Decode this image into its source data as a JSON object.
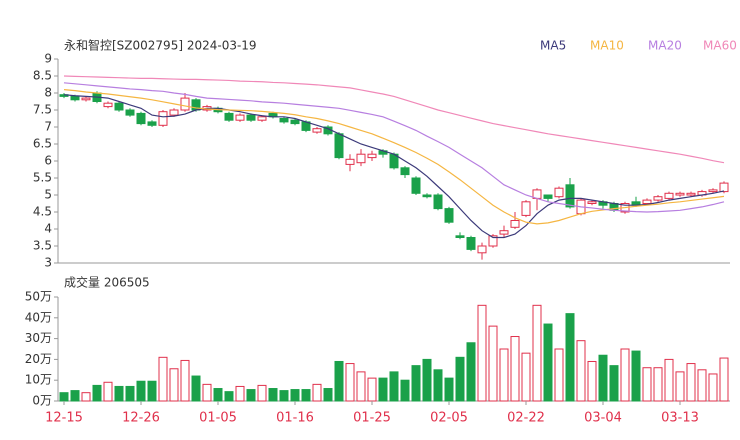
{
  "chart_data": [
    {
      "type": "candlestick",
      "title": "永和智控[SZ002795] 2024-03-19",
      "up_color": "#e0304b",
      "down_color": "#1aa14a",
      "legend": "top-right",
      "open": [
        7.95,
        7.9,
        7.8,
        8.0,
        7.6,
        7.7,
        7.5,
        7.4,
        7.15,
        7.05,
        7.35,
        7.5,
        7.8,
        7.5,
        7.55,
        7.4,
        7.2,
        7.35,
        7.2,
        7.4,
        7.25,
        7.2,
        7.15,
        6.85,
        7.0,
        6.8,
        5.9,
        5.95,
        6.1,
        6.3,
        6.2,
        5.8,
        5.5,
        5.0,
        5.0,
        4.6,
        3.8,
        3.75,
        3.3,
        3.5,
        3.85,
        4.05,
        4.4,
        4.9,
        5.0,
        4.95,
        5.3,
        4.45,
        4.75,
        4.8,
        4.75,
        4.5,
        4.8,
        4.75,
        4.85,
        4.9,
        5.0,
        5.0,
        5.0,
        5.1,
        5.1
      ],
      "close": [
        7.9,
        7.8,
        7.85,
        7.75,
        7.7,
        7.5,
        7.35,
        7.1,
        7.05,
        7.45,
        7.5,
        7.85,
        7.5,
        7.6,
        7.45,
        7.2,
        7.35,
        7.2,
        7.3,
        7.3,
        7.15,
        7.1,
        6.9,
        6.95,
        6.8,
        6.1,
        6.05,
        6.2,
        6.2,
        6.2,
        5.8,
        5.6,
        5.05,
        4.95,
        4.6,
        4.2,
        3.75,
        3.4,
        3.5,
        3.8,
        3.95,
        4.25,
        4.8,
        5.15,
        4.9,
        5.2,
        4.65,
        4.85,
        4.8,
        4.7,
        4.55,
        4.75,
        4.7,
        4.85,
        4.95,
        5.05,
        5.05,
        5.05,
        5.1,
        5.15,
        5.35
      ],
      "high": [
        8.0,
        7.95,
        7.9,
        8.05,
        7.75,
        7.75,
        7.55,
        7.45,
        7.2,
        7.5,
        7.55,
        8.0,
        7.85,
        7.65,
        7.6,
        7.45,
        7.4,
        7.4,
        7.35,
        7.45,
        7.3,
        7.25,
        7.2,
        7.0,
        7.05,
        6.85,
        6.2,
        6.35,
        6.3,
        6.35,
        6.25,
        5.85,
        5.55,
        5.05,
        5.05,
        4.65,
        3.9,
        3.8,
        3.6,
        3.85,
        4.1,
        4.5,
        4.85,
        5.2,
        5.0,
        5.25,
        5.5,
        4.9,
        4.85,
        4.85,
        4.8,
        4.8,
        4.95,
        4.9,
        5.0,
        5.1,
        5.1,
        5.1,
        5.15,
        5.2,
        5.4
      ],
      "low": [
        7.85,
        7.75,
        7.75,
        7.7,
        7.55,
        7.45,
        7.3,
        7.05,
        7.0,
        7.0,
        7.3,
        7.45,
        7.45,
        7.45,
        7.4,
        7.15,
        7.15,
        7.15,
        7.15,
        7.25,
        7.1,
        7.05,
        6.85,
        6.8,
        6.75,
        6.05,
        5.7,
        5.85,
        6.0,
        6.1,
        5.75,
        5.5,
        5.0,
        4.9,
        4.55,
        4.15,
        3.7,
        3.35,
        3.1,
        3.45,
        3.75,
        4.0,
        4.35,
        4.55,
        4.8,
        4.9,
        4.6,
        4.4,
        4.7,
        4.6,
        4.5,
        4.45,
        4.65,
        4.7,
        4.8,
        4.85,
        4.95,
        4.95,
        4.95,
        5.05,
        5.05
      ],
      "ylim": [
        3,
        9
      ],
      "yticks": [
        3,
        3.5,
        4,
        4.5,
        5,
        5.5,
        6,
        6.5,
        7,
        7.5,
        8,
        8.5,
        9
      ],
      "series": [
        {
          "name": "MA5",
          "color": "#3c3a7a",
          "values": [
            7.95,
            7.92,
            7.9,
            7.88,
            7.85,
            7.75,
            7.65,
            7.55,
            7.35,
            7.3,
            7.32,
            7.38,
            7.5,
            7.55,
            7.55,
            7.5,
            7.45,
            7.38,
            7.33,
            7.3,
            7.3,
            7.25,
            7.15,
            7.05,
            6.95,
            6.8,
            6.65,
            6.5,
            6.4,
            6.3,
            6.2,
            6.0,
            5.8,
            5.55,
            5.25,
            4.95,
            4.6,
            4.25,
            3.95,
            3.75,
            3.75,
            3.85,
            4.1,
            4.45,
            4.7,
            4.85,
            4.9,
            4.9,
            4.85,
            4.8,
            4.75,
            4.7,
            4.7,
            4.72,
            4.78,
            4.85,
            4.9,
            4.95,
            5.0,
            5.05,
            5.12
          ]
        },
        {
          "name": "MA10",
          "color": "#f5b642",
          "values": [
            8.1,
            8.07,
            8.03,
            8.0,
            7.97,
            7.93,
            7.89,
            7.85,
            7.8,
            7.74,
            7.68,
            7.62,
            7.56,
            7.53,
            7.51,
            7.5,
            7.49,
            7.48,
            7.46,
            7.43,
            7.4,
            7.36,
            7.3,
            7.25,
            7.18,
            7.1,
            7.0,
            6.9,
            6.8,
            6.67,
            6.54,
            6.4,
            6.25,
            6.08,
            5.9,
            5.68,
            5.45,
            5.2,
            4.95,
            4.7,
            4.5,
            4.33,
            4.2,
            4.15,
            4.18,
            4.25,
            4.35,
            4.45,
            4.52,
            4.56,
            4.6,
            4.63,
            4.67,
            4.7,
            4.73,
            4.77,
            4.8,
            4.84,
            4.88,
            4.92,
            4.96
          ]
        },
        {
          "name": "MA20",
          "color": "#b77fe0",
          "values": [
            8.3,
            8.27,
            8.24,
            8.21,
            8.18,
            8.15,
            8.12,
            8.1,
            8.07,
            8.05,
            8.0,
            7.96,
            7.9,
            7.85,
            7.83,
            7.81,
            7.79,
            7.77,
            7.74,
            7.72,
            7.7,
            7.67,
            7.64,
            7.61,
            7.58,
            7.55,
            7.49,
            7.43,
            7.37,
            7.3,
            7.17,
            7.04,
            6.9,
            6.73,
            6.57,
            6.4,
            6.2,
            6.0,
            5.8,
            5.55,
            5.3,
            5.15,
            5.0,
            4.9,
            4.8,
            4.75,
            4.7,
            4.65,
            4.62,
            4.58,
            4.55,
            4.53,
            4.51,
            4.5,
            4.51,
            4.53,
            4.55,
            4.6,
            4.65,
            4.72,
            4.8
          ]
        },
        {
          "name": "MA60",
          "color": "#f088b8",
          "values": [
            8.5,
            8.49,
            8.48,
            8.47,
            8.46,
            8.45,
            8.44,
            8.43,
            8.43,
            8.42,
            8.41,
            8.4,
            8.4,
            8.39,
            8.38,
            8.37,
            8.35,
            8.34,
            8.33,
            8.31,
            8.3,
            8.28,
            8.26,
            8.24,
            8.21,
            8.18,
            8.15,
            8.09,
            8.03,
            7.97,
            7.9,
            7.8,
            7.7,
            7.6,
            7.5,
            7.42,
            7.34,
            7.26,
            7.18,
            7.1,
            7.04,
            6.98,
            6.92,
            6.86,
            6.8,
            6.75,
            6.7,
            6.65,
            6.6,
            6.55,
            6.5,
            6.45,
            6.4,
            6.35,
            6.3,
            6.25,
            6.2,
            6.14,
            6.08,
            6.01,
            5.95
          ]
        }
      ]
    },
    {
      "type": "bar",
      "title": "成交量 206505",
      "categories": [
        "12-15",
        null,
        null,
        null,
        null,
        null,
        null,
        "12-26",
        null,
        null,
        null,
        null,
        null,
        null,
        "01-05",
        null,
        null,
        null,
        null,
        null,
        null,
        "01-16",
        null,
        null,
        null,
        null,
        null,
        null,
        "01-25",
        null,
        null,
        null,
        null,
        null,
        null,
        "02-05",
        null,
        null,
        null,
        null,
        null,
        null,
        "02-22",
        null,
        null,
        null,
        null,
        null,
        null,
        "03-04",
        null,
        null,
        null,
        null,
        null,
        null,
        "03-13",
        null,
        null,
        null,
        null
      ],
      "values": [
        4,
        5,
        4,
        7.5,
        9,
        7,
        7,
        9.5,
        9.5,
        21,
        15.5,
        19.5,
        12,
        8,
        6,
        4.5,
        7,
        5.5,
        7.5,
        6,
        5,
        5.5,
        5.5,
        8,
        6,
        19,
        18,
        14,
        11,
        11,
        14,
        10,
        17,
        20,
        15,
        11,
        21,
        28,
        46,
        36,
        25,
        31,
        23,
        46,
        37,
        25,
        42,
        29,
        19,
        22,
        17,
        25,
        24,
        16,
        16,
        20,
        14,
        18,
        15,
        13,
        20.6505
      ],
      "ylim": [
        0,
        50
      ],
      "yticks": [
        {
          "value": 0,
          "label": "0万"
        },
        {
          "value": 10,
          "label": "10万"
        },
        {
          "value": 20,
          "label": "20万"
        },
        {
          "value": 30,
          "label": "30万"
        },
        {
          "value": 40,
          "label": "40万"
        },
        {
          "value": 50,
          "label": "50万"
        }
      ],
      "label_color": "#e0304b"
    }
  ]
}
